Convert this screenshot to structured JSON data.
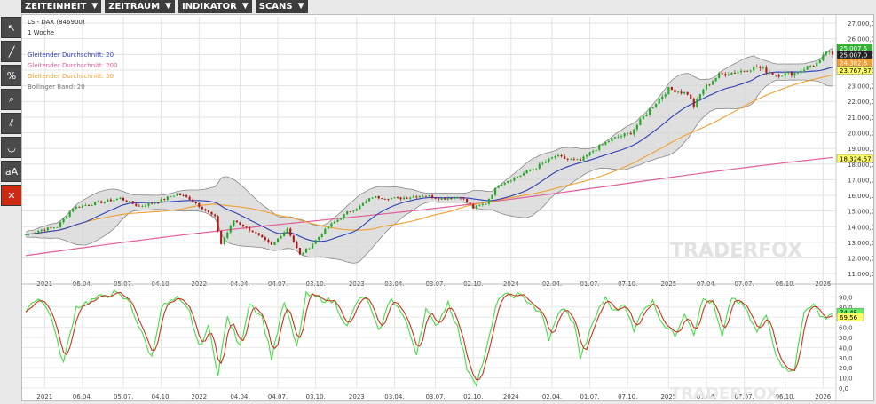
{
  "menu": {
    "items": [
      {
        "label": "ZEITEINHEIT"
      },
      {
        "label": "ZEITRAUM"
      },
      {
        "label": "INDIKATOR"
      },
      {
        "label": "SCANS"
      }
    ]
  },
  "toolbar": {
    "tools": [
      {
        "name": "cursor-icon",
        "glyph": "↖"
      },
      {
        "name": "line-icon",
        "glyph": "╱"
      },
      {
        "name": "percent-icon",
        "glyph": "%"
      },
      {
        "name": "zoom-icon",
        "glyph": "⌕"
      },
      {
        "name": "channel-icon",
        "glyph": "⫽"
      },
      {
        "name": "curve-icon",
        "glyph": "◡"
      },
      {
        "name": "font-size-icon",
        "glyph": "aA"
      },
      {
        "name": "delete-icon",
        "glyph": "✕"
      }
    ]
  },
  "watermark": "TRADERFOX",
  "chart_data": {
    "type": "candlestick",
    "title": "LS - DAX (846900)",
    "subtitle": "1 Woche",
    "legend": [
      {
        "label": "Gleitender Durchschnitt: 20",
        "color": "#2f3fb5"
      },
      {
        "label": "Gleitender Durchschnitt: 200",
        "color": "#e0609a"
      },
      {
        "label": "Gleitender Durchschnitt: 50",
        "color": "#f0a030"
      },
      {
        "label": "Bollinger Band: 20",
        "color": "#777777"
      }
    ],
    "x_labels": [
      "2021",
      "06.04.",
      "05.07.",
      "04.10.",
      "2022",
      "04.04.",
      "04.07.",
      "03.10.",
      "2023",
      "03.04.",
      "03.07.",
      "02.10.",
      "2024",
      "02.04.",
      "01.07.",
      "07.10.",
      "2025",
      "07.04.",
      "07.07.",
      "06.10.",
      "2026"
    ],
    "y_ticks": [
      "27.000,0",
      "26.000,0",
      "25.000,0",
      "24.000,0",
      "23.000,0",
      "22.000,0",
      "21.000,0",
      "20.000,0",
      "19.000,0",
      "18.000,0",
      "17.000,0",
      "16.000,0",
      "15.000,0",
      "14.000,0",
      "13.000,0",
      "12.000,0",
      "11.000,0"
    ],
    "ylim": [
      10500,
      27400
    ],
    "price_key": [
      [
        0,
        13500
      ],
      [
        5,
        13800
      ],
      [
        10,
        14000
      ],
      [
        15,
        15200
      ],
      [
        22,
        15500
      ],
      [
        30,
        15800
      ],
      [
        36,
        15300
      ],
      [
        42,
        15600
      ],
      [
        48,
        16100
      ],
      [
        52,
        15800
      ],
      [
        56,
        15200
      ],
      [
        60,
        14600
      ],
      [
        62,
        12900
      ],
      [
        66,
        14400
      ],
      [
        72,
        13700
      ],
      [
        78,
        12800
      ],
      [
        83,
        13900
      ],
      [
        87,
        12200
      ],
      [
        90,
        12700
      ],
      [
        96,
        14000
      ],
      [
        102,
        14900
      ],
      [
        106,
        15300
      ],
      [
        110,
        15900
      ],
      [
        118,
        15800
      ],
      [
        126,
        16000
      ],
      [
        132,
        15800
      ],
      [
        138,
        15900
      ],
      [
        142,
        15200
      ],
      [
        146,
        15500
      ],
      [
        150,
        16700
      ],
      [
        156,
        17200
      ],
      [
        162,
        17800
      ],
      [
        168,
        18500
      ],
      [
        172,
        18300
      ],
      [
        176,
        18200
      ],
      [
        181,
        19000
      ],
      [
        186,
        19600
      ],
      [
        192,
        20000
      ],
      [
        198,
        21500
      ],
      [
        204,
        22800
      ],
      [
        210,
        22500
      ],
      [
        212,
        21700
      ],
      [
        215,
        22800
      ],
      [
        220,
        23700
      ],
      [
        226,
        23900
      ],
      [
        232,
        24200
      ],
      [
        238,
        23700
      ],
      [
        244,
        23800
      ],
      [
        248,
        24200
      ],
      [
        252,
        24500
      ],
      [
        254,
        25200
      ],
      [
        256,
        24900
      ]
    ],
    "price_labels": [
      {
        "value": "25.007,5",
        "bg": "#33b233",
        "fg": "#ffffff",
        "y": 25400
      },
      {
        "value": "25.007,0",
        "bg": "#222222",
        "fg": "#ffffff",
        "y": 24950
      },
      {
        "value": "24.382,6",
        "bg": "#f0a030",
        "fg": "#ffffff",
        "y": 24450
      },
      {
        "value": "23.767,87",
        "bg": "#ffff66",
        "fg": "#000000",
        "y": 23960
      },
      {
        "value": "18.324,57",
        "bg": "#ffff66",
        "fg": "#000000",
        "y": 18324
      }
    ],
    "stoch": {
      "y_ticks": [
        "90,0",
        "80,0",
        "70,0",
        "60,0",
        "50,0",
        "40,0",
        "30,0",
        "20,0",
        "10,0",
        "0,0"
      ],
      "ylim": [
        0,
        100
      ],
      "key": [
        [
          0,
          78
        ],
        [
          4,
          90
        ],
        [
          8,
          72
        ],
        [
          10,
          45
        ],
        [
          12,
          25
        ],
        [
          16,
          80
        ],
        [
          22,
          88
        ],
        [
          28,
          94
        ],
        [
          33,
          85
        ],
        [
          36,
          60
        ],
        [
          40,
          30
        ],
        [
          43,
          80
        ],
        [
          48,
          88
        ],
        [
          52,
          75
        ],
        [
          55,
          40
        ],
        [
          58,
          60
        ],
        [
          61,
          15
        ],
        [
          64,
          70
        ],
        [
          68,
          40
        ],
        [
          71,
          85
        ],
        [
          75,
          70
        ],
        [
          78,
          30
        ],
        [
          82,
          85
        ],
        [
          86,
          40
        ],
        [
          89,
          92
        ],
        [
          94,
          88
        ],
        [
          98,
          85
        ],
        [
          102,
          60
        ],
        [
          105,
          85
        ],
        [
          108,
          90
        ],
        [
          112,
          55
        ],
        [
          116,
          90
        ],
        [
          120,
          70
        ],
        [
          124,
          35
        ],
        [
          127,
          78
        ],
        [
          130,
          60
        ],
        [
          134,
          85
        ],
        [
          137,
          60
        ],
        [
          140,
          20
        ],
        [
          143,
          5
        ],
        [
          146,
          35
        ],
        [
          150,
          90
        ],
        [
          156,
          92
        ],
        [
          160,
          85
        ],
        [
          164,
          70
        ],
        [
          166,
          48
        ],
        [
          170,
          80
        ],
        [
          174,
          65
        ],
        [
          176,
          30
        ],
        [
          179,
          55
        ],
        [
          182,
          80
        ],
        [
          184,
          88
        ],
        [
          187,
          75
        ],
        [
          190,
          85
        ],
        [
          193,
          55
        ],
        [
          196,
          80
        ],
        [
          199,
          85
        ],
        [
          202,
          65
        ],
        [
          206,
          52
        ],
        [
          209,
          75
        ],
        [
          212,
          55
        ],
        [
          215,
          88
        ],
        [
          218,
          84
        ],
        [
          221,
          50
        ],
        [
          224,
          90
        ],
        [
          228,
          80
        ],
        [
          232,
          55
        ],
        [
          235,
          72
        ],
        [
          238,
          35
        ],
        [
          241,
          18
        ],
        [
          244,
          20
        ],
        [
          247,
          75
        ],
        [
          250,
          85
        ],
        [
          252,
          68
        ],
        [
          256,
          74
        ]
      ],
      "labels": [
        {
          "value": "74,45",
          "bg": "#66ee66",
          "fg": "#000000",
          "y": 74.45
        },
        {
          "value": "69,56",
          "bg": "#ffff66",
          "fg": "#000000",
          "y": 69.56
        }
      ]
    }
  }
}
